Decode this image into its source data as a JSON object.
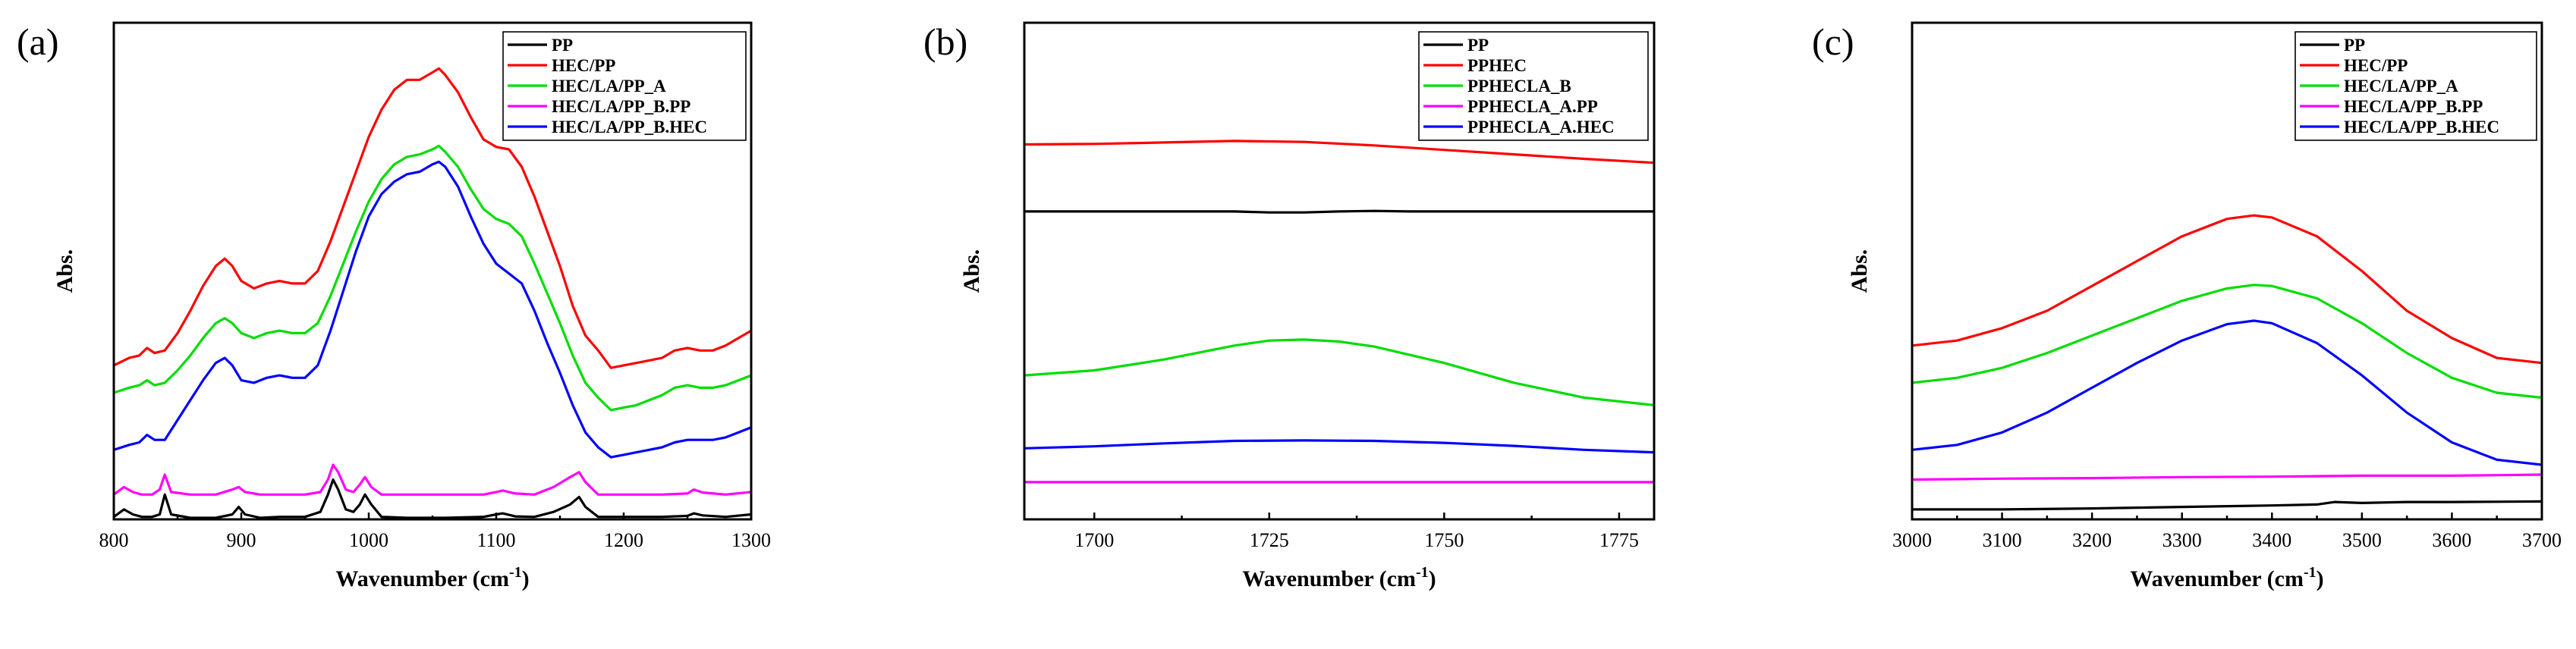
{
  "chart_data": [
    {
      "type": "line",
      "panel_label": "(a)",
      "title": "",
      "xlabel_main": "Wavenumber (cm",
      "xlabel_sup": "-1",
      "xlabel_end": ")",
      "ylabel": "Abs.",
      "xlim": [
        800,
        1300
      ],
      "ylim": [
        0,
        100
      ],
      "xticks": [
        800,
        900,
        1000,
        1100,
        1200,
        1300
      ],
      "xtick_labels": [
        "800",
        "900",
        "1000",
        "1100",
        "1200",
        "1300"
      ],
      "yticks_shown": false,
      "legend_position": "top-right",
      "series": [
        {
          "name": "PP",
          "color": "#000000",
          "x": [
            800,
            808,
            815,
            822,
            830,
            836,
            840,
            845,
            860,
            880,
            893,
            898,
            903,
            915,
            930,
            950,
            962,
            968,
            972,
            976,
            982,
            988,
            993,
            997,
            1002,
            1010,
            1030,
            1060,
            1090,
            1100,
            1105,
            1115,
            1130,
            1145,
            1158,
            1165,
            1170,
            1180,
            1200,
            1230,
            1250,
            1255,
            1262,
            1280,
            1300
          ],
          "y": [
            0.5,
            2,
            1,
            0.5,
            0.5,
            1,
            5,
            1,
            0.3,
            0.3,
            1,
            2.5,
            1,
            0.3,
            0.5,
            0.5,
            1.5,
            5,
            8,
            6,
            2,
            1.5,
            3,
            5,
            3,
            0.5,
            0.3,
            0.3,
            0.5,
            1,
            1.2,
            0.6,
            0.5,
            1.5,
            3,
            4.5,
            2.5,
            0.5,
            0.5,
            0.5,
            0.7,
            1.2,
            0.8,
            0.5,
            1
          ]
        },
        {
          "name": "HEC/PP",
          "color": "#ff0000",
          "x": [
            800,
            812,
            820,
            826,
            832,
            840,
            850,
            860,
            870,
            880,
            887,
            893,
            900,
            910,
            920,
            930,
            940,
            950,
            960,
            970,
            980,
            990,
            1000,
            1010,
            1020,
            1030,
            1040,
            1050,
            1055,
            1060,
            1070,
            1080,
            1090,
            1100,
            1110,
            1120,
            1130,
            1140,
            1150,
            1160,
            1170,
            1180,
            1190,
            1200,
            1210,
            1220,
            1230,
            1240,
            1250,
            1260,
            1270,
            1280,
            1290,
            1300
          ],
          "y": [
            31,
            32.5,
            33,
            34.5,
            33.5,
            34,
            37.5,
            42,
            47,
            51,
            52.5,
            51,
            48,
            46.5,
            47.5,
            48,
            47.5,
            47.5,
            50,
            56,
            63,
            70,
            77,
            82.5,
            86.5,
            88.5,
            88.5,
            90,
            90.8,
            89.5,
            86,
            81,
            76.5,
            75,
            74.5,
            71,
            65,
            58,
            51,
            43,
            37,
            34,
            30.5,
            31,
            31.5,
            32,
            32.5,
            34,
            34.5,
            34,
            34,
            35,
            36.5,
            38
          ]
        },
        {
          "name": "HEC/LA/PP_A",
          "color": "#00dd00",
          "x": [
            800,
            812,
            820,
            826,
            832,
            840,
            850,
            860,
            870,
            880,
            887,
            893,
            900,
            910,
            920,
            930,
            940,
            950,
            960,
            970,
            980,
            990,
            1000,
            1010,
            1020,
            1030,
            1040,
            1050,
            1055,
            1060,
            1070,
            1080,
            1090,
            1100,
            1110,
            1120,
            1130,
            1140,
            1150,
            1160,
            1170,
            1180,
            1190,
            1200,
            1210,
            1220,
            1230,
            1240,
            1250,
            1260,
            1270,
            1280,
            1290,
            1300
          ],
          "y": [
            25.5,
            26.5,
            27,
            28,
            27,
            27.5,
            30,
            33,
            36.5,
            39.5,
            40.5,
            39.5,
            37.5,
            36.5,
            37.5,
            38,
            37.5,
            37.5,
            39.5,
            45,
            51.5,
            58,
            64,
            68.5,
            71.5,
            73,
            73.5,
            74.5,
            75.2,
            74,
            71,
            66.5,
            62.5,
            60.5,
            59.5,
            57,
            51.5,
            45.5,
            39.5,
            33,
            27.5,
            24.5,
            22,
            22.5,
            23,
            24,
            25,
            26.5,
            27,
            26.5,
            26.5,
            27,
            28,
            29
          ]
        },
        {
          "name": "HEC/LA/PP_B.PP",
          "color": "#ff00ff",
          "x": [
            800,
            808,
            815,
            822,
            830,
            836,
            840,
            845,
            860,
            880,
            893,
            898,
            903,
            915,
            930,
            950,
            962,
            968,
            972,
            976,
            982,
            988,
            993,
            997,
            1002,
            1010,
            1030,
            1060,
            1090,
            1100,
            1105,
            1115,
            1130,
            1145,
            1158,
            1165,
            1170,
            1180,
            1200,
            1230,
            1250,
            1255,
            1262,
            1280,
            1300
          ],
          "y": [
            5,
            6.5,
            5.5,
            5,
            5,
            6,
            9,
            5.5,
            5,
            5,
            6,
            6.5,
            5.5,
            5,
            5,
            5,
            5.5,
            8,
            11,
            9.5,
            6,
            5.5,
            7,
            8.5,
            6.5,
            5,
            5,
            5,
            5,
            5.5,
            5.8,
            5.2,
            5,
            6.5,
            8.5,
            9.5,
            7.5,
            5,
            5,
            5,
            5.2,
            6,
            5.4,
            5,
            5.5
          ]
        },
        {
          "name": "HEC/LA/PP_B.HEC",
          "color": "#0000ff",
          "x": [
            800,
            812,
            820,
            826,
            832,
            840,
            850,
            860,
            870,
            880,
            887,
            893,
            900,
            910,
            920,
            930,
            940,
            950,
            960,
            970,
            980,
            990,
            1000,
            1010,
            1020,
            1030,
            1040,
            1050,
            1055,
            1060,
            1070,
            1080,
            1090,
            1100,
            1110,
            1120,
            1130,
            1140,
            1150,
            1160,
            1170,
            1180,
            1190,
            1200,
            1210,
            1220,
            1230,
            1240,
            1250,
            1260,
            1270,
            1280,
            1290,
            1300
          ],
          "y": [
            14,
            15,
            15.5,
            17,
            16,
            16,
            20,
            24,
            28,
            31.5,
            32.5,
            31,
            28,
            27.5,
            28.5,
            29,
            28.5,
            28.5,
            31,
            38,
            46,
            54,
            61,
            65.5,
            68,
            69.5,
            70,
            71.5,
            72,
            71,
            67,
            61,
            55.5,
            51.5,
            49.5,
            47.5,
            42,
            35.5,
            29.5,
            23,
            17.5,
            14.5,
            12.5,
            13,
            13.5,
            14,
            14.5,
            15.5,
            16,
            16,
            16,
            16.5,
            17.5,
            18.5
          ]
        }
      ]
    },
    {
      "type": "line",
      "panel_label": "(b)",
      "title": "",
      "xlabel_main": "Wavenumber (cm",
      "xlabel_sup": "-1",
      "xlabel_end": ")",
      "ylabel": "Abs.",
      "xlim": [
        1690,
        1780
      ],
      "ylim": [
        0,
        100
      ],
      "xticks": [
        1700,
        1725,
        1750,
        1775
      ],
      "xtick_labels": [
        "1700",
        "1725",
        "1750",
        "1775"
      ],
      "yticks_shown": false,
      "legend_position": "top-right",
      "series": [
        {
          "name": "PP",
          "color": "#000000",
          "x": [
            1690,
            1700,
            1710,
            1720,
            1725,
            1730,
            1735,
            1740,
            1745,
            1750,
            1760,
            1770,
            1780
          ],
          "y": [
            62,
            62,
            62,
            62,
            61.8,
            61.8,
            62,
            62.1,
            62,
            62,
            62,
            62,
            62
          ]
        },
        {
          "name": "PPHEC",
          "color": "#ff0000",
          "x": [
            1690,
            1700,
            1710,
            1720,
            1730,
            1740,
            1750,
            1760,
            1770,
            1780
          ],
          "y": [
            75.5,
            75.6,
            75.9,
            76.2,
            76,
            75.3,
            74.4,
            73.5,
            72.6,
            71.8
          ]
        },
        {
          "name": "PPHECLA_B",
          "color": "#00dd00",
          "x": [
            1690,
            1700,
            1710,
            1720,
            1725,
            1730,
            1735,
            1740,
            1750,
            1760,
            1770,
            1780
          ],
          "y": [
            29,
            30,
            32.2,
            35,
            36,
            36.2,
            35.8,
            34.8,
            31.5,
            27.5,
            24.5,
            23
          ]
        },
        {
          "name": "PPHECLA_A.PP",
          "color": "#ff00ff",
          "x": [
            1690,
            1710,
            1730,
            1750,
            1780
          ],
          "y": [
            7.5,
            7.5,
            7.5,
            7.5,
            7.5
          ]
        },
        {
          "name": "PPHECLA_A.HEC",
          "color": "#0000ff",
          "x": [
            1690,
            1700,
            1710,
            1720,
            1730,
            1740,
            1750,
            1760,
            1770,
            1780
          ],
          "y": [
            14.3,
            14.7,
            15.3,
            15.8,
            15.9,
            15.8,
            15.4,
            14.8,
            14,
            13.5
          ]
        }
      ]
    },
    {
      "type": "line",
      "panel_label": "(c)",
      "title": "",
      "xlabel_main": "Wavenumber (cm",
      "xlabel_sup": "-1",
      "xlabel_end": ")",
      "ylabel": "Abs.",
      "xlim": [
        3000,
        3700
      ],
      "ylim": [
        0,
        100
      ],
      "xticks": [
        3000,
        3100,
        3200,
        3300,
        3400,
        3500,
        3600,
        3700
      ],
      "xtick_labels": [
        "3000",
        "3100",
        "3200",
        "3300",
        "3400",
        "3500",
        "3600",
        "3700"
      ],
      "yticks_shown": false,
      "legend_position": "top-right",
      "series": [
        {
          "name": "PP",
          "color": "#000000",
          "x": [
            3000,
            3100,
            3200,
            3300,
            3400,
            3450,
            3470,
            3500,
            3550,
            3600,
            3700
          ],
          "y": [
            2,
            2,
            2.2,
            2.5,
            2.8,
            3,
            3.5,
            3.3,
            3.5,
            3.5,
            3.6
          ]
        },
        {
          "name": "HEC/PP",
          "color": "#ff0000",
          "x": [
            3000,
            3050,
            3100,
            3150,
            3200,
            3250,
            3300,
            3350,
            3380,
            3400,
            3450,
            3500,
            3550,
            3600,
            3650,
            3700
          ],
          "y": [
            35,
            36,
            38.5,
            42,
            47,
            52,
            57,
            60.5,
            61.2,
            60.8,
            57,
            50,
            42,
            36.5,
            32.5,
            31.5
          ]
        },
        {
          "name": "HEC/LA/PP_A",
          "color": "#00dd00",
          "x": [
            3000,
            3050,
            3100,
            3150,
            3200,
            3250,
            3300,
            3350,
            3380,
            3400,
            3450,
            3500,
            3550,
            3600,
            3650,
            3700
          ],
          "y": [
            27.5,
            28.5,
            30.5,
            33.5,
            37,
            40.5,
            44,
            46.5,
            47.2,
            47,
            44.5,
            39.5,
            33.5,
            28.5,
            25.5,
            24.5
          ]
        },
        {
          "name": "HEC/LA/PP_B.PP",
          "color": "#ff00ff",
          "x": [
            3000,
            3100,
            3200,
            3300,
            3400,
            3500,
            3600,
            3700
          ],
          "y": [
            8,
            8.2,
            8.3,
            8.5,
            8.6,
            8.8,
            8.8,
            9
          ]
        },
        {
          "name": "HEC/LA/PP_B.HEC",
          "color": "#0000ff",
          "x": [
            3000,
            3050,
            3100,
            3150,
            3200,
            3250,
            3300,
            3350,
            3380,
            3400,
            3450,
            3500,
            3550,
            3600,
            3650,
            3700
          ],
          "y": [
            14,
            15,
            17.5,
            21.5,
            26.5,
            31.5,
            36,
            39.3,
            40,
            39.5,
            35.5,
            29,
            21.5,
            15.5,
            12,
            11
          ]
        }
      ]
    }
  ]
}
